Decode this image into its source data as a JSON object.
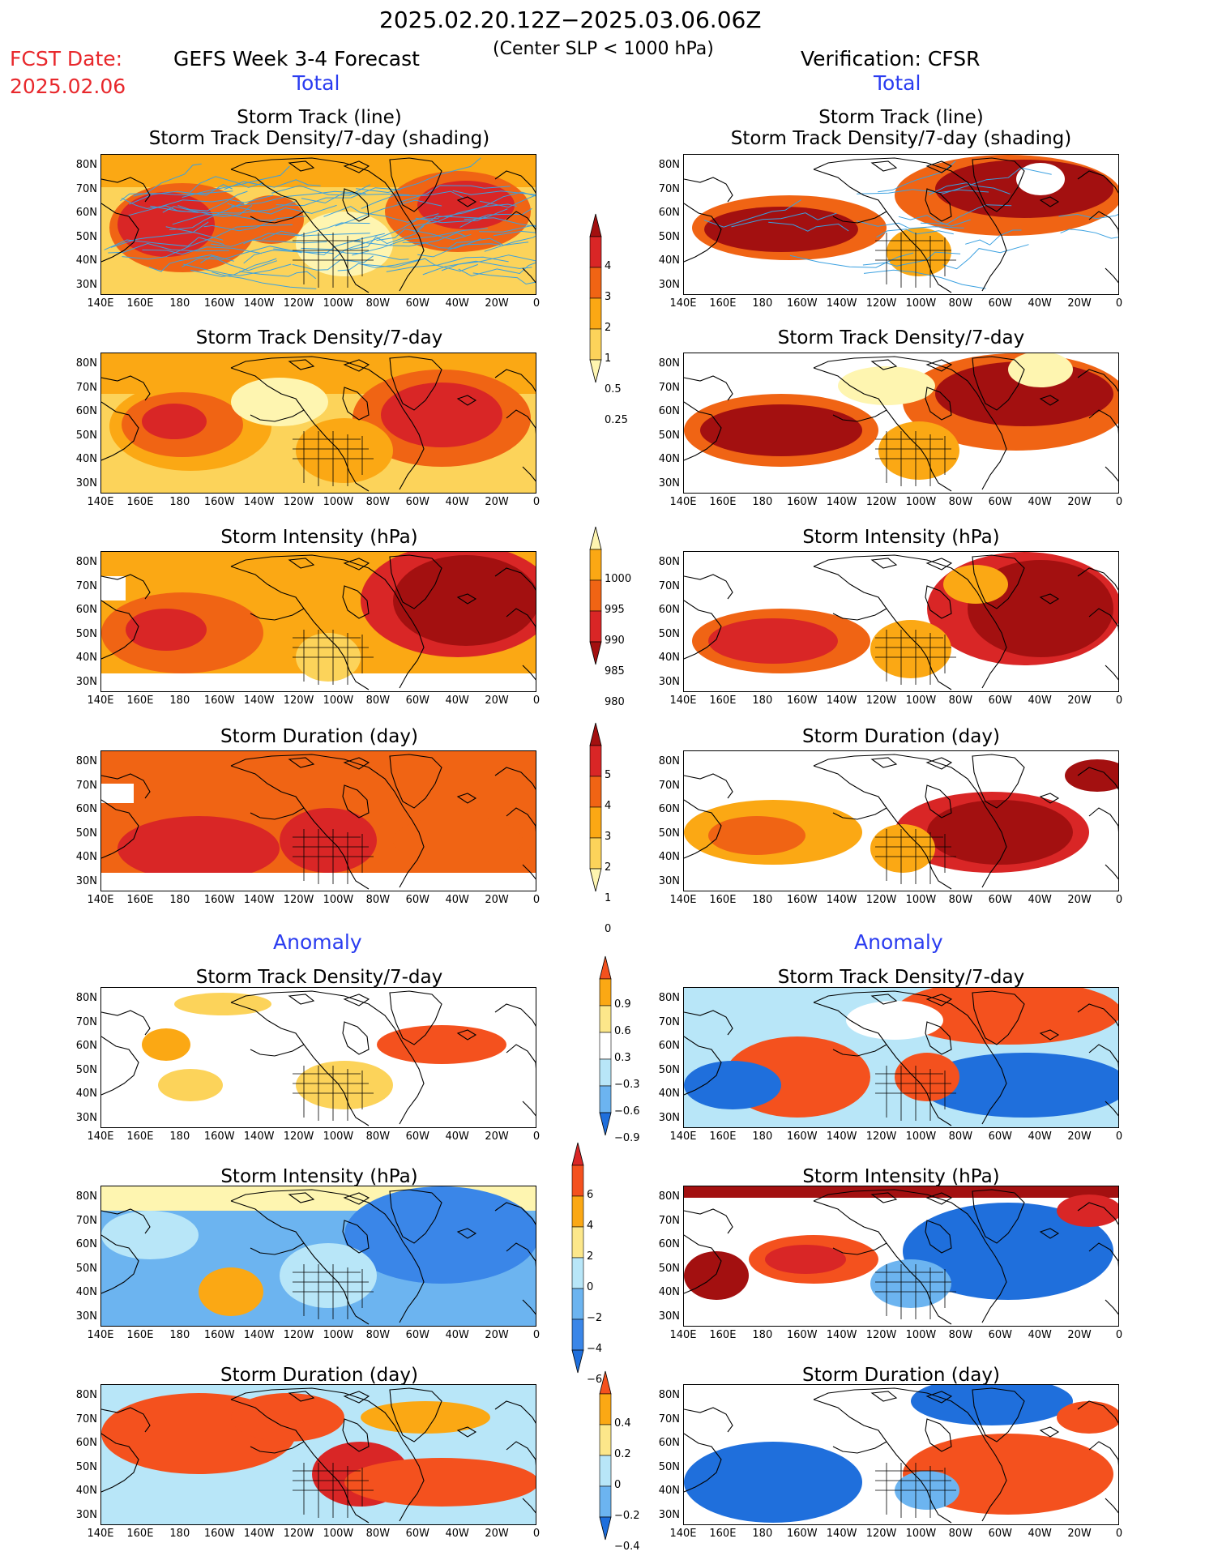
{
  "header": {
    "date_range": "2025.02.20.12Z−2025.03.06.06Z",
    "subtitle": "(Center SLP < 1000 hPa)",
    "fcst_label": "FCST Date:",
    "fcst_date": "2025.02.06",
    "left_model": "GEFS Week 3-4 Forecast",
    "right_model": "Verification: CFSR",
    "total_label": "Total",
    "anomaly_label": "Anomaly"
  },
  "panel_titles": {
    "track_line": "Storm Track (line)",
    "track_shading": "Storm Track Density/7-day (shading)",
    "density": "Storm Track Density/7-day",
    "intensity": "Storm Intensity (hPa)",
    "duration": "Storm Duration (day)"
  },
  "axes": {
    "lat_ticks": [
      "80N",
      "70N",
      "60N",
      "50N",
      "40N",
      "30N"
    ],
    "lon_ticks": [
      "140E",
      "160E",
      "180",
      "160W",
      "140W",
      "120W",
      "100W",
      "80W",
      "60W",
      "40W",
      "20W",
      "0"
    ]
  },
  "colorbars": {
    "density_total": {
      "labels": [
        "4",
        "3",
        "2",
        "1",
        "0.5",
        "0.25"
      ],
      "colors": [
        "#a31010",
        "#d92626",
        "#f06414",
        "#fba814",
        "#fcd35a",
        "#fef5b0"
      ]
    },
    "intensity_total": {
      "labels": [
        "1000",
        "995",
        "990",
        "985",
        "980"
      ],
      "colors": [
        "#fef5b0",
        "#fba814",
        "#f06414",
        "#d92626",
        "#a31010"
      ]
    },
    "duration_total": {
      "labels": [
        "5",
        "4",
        "3",
        "2",
        "1",
        "0"
      ],
      "colors": [
        "#a31010",
        "#d92626",
        "#f06414",
        "#fba814",
        "#fcd35a",
        "#fef5b0"
      ]
    },
    "density_anom": {
      "labels": [
        "0.9",
        "0.6",
        "0.3",
        "−0.3",
        "−0.6",
        "−0.9"
      ],
      "colors": [
        "#f4511e",
        "#fba814",
        "#fce78a",
        "#ffffff",
        "#b8e6f8",
        "#6cb4f0",
        "#1f6fdc"
      ]
    },
    "intensity_anom": {
      "labels": [
        "6",
        "4",
        "2",
        "0",
        "−2",
        "−4",
        "−6"
      ],
      "colors": [
        "#d92626",
        "#f4511e",
        "#fba814",
        "#fce78a",
        "#b8e6f8",
        "#6cb4f0",
        "#3a86e8",
        "#1f6fdc"
      ]
    },
    "duration_anom": {
      "labels": [
        "0.4",
        "0.2",
        "0",
        "−0.2",
        "−0.4"
      ],
      "colors": [
        "#f4511e",
        "#fba814",
        "#fce78a",
        "#b8e6f8",
        "#6cb4f0",
        "#1f6fdc"
      ]
    }
  }
}
